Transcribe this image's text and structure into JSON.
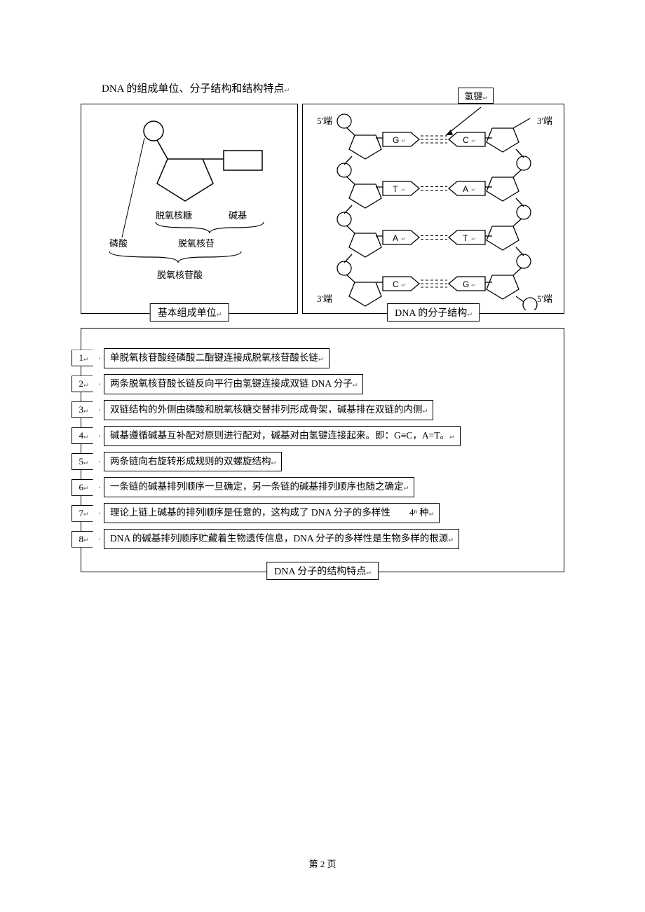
{
  "title": "DNA 的组成单位、分子结构和结构特点",
  "left_panel": {
    "label": "基本组成单位",
    "phosphate_label": "磷酸",
    "sugar_label": "脱氧核糖",
    "base_label": "碱基",
    "nucleoside_label": "脱氧核苷",
    "nucleotide_label": "脱氧核苷酸"
  },
  "right_panel": {
    "label": "DNA 的分子结构",
    "hbond_label": "氢键",
    "end5": "5'端",
    "end3": "3'端",
    "pairs": [
      {
        "left": "G",
        "right": "C",
        "bonds": 3
      },
      {
        "left": "T",
        "right": "A",
        "bonds": 2
      },
      {
        "left": "A",
        "right": "T",
        "bonds": 2
      },
      {
        "left": "C",
        "right": "G",
        "bonds": 3
      }
    ]
  },
  "features_panel": {
    "label": "DNA 分子的结构特点",
    "items": [
      {
        "n": "1",
        "text": "单脱氧核苷酸经磷酸二酯键连接成脱氧核苷酸长链"
      },
      {
        "n": "2",
        "text": "两条脱氧核苷酸长链反向平行由氢键连接成双链 DNA 分子"
      },
      {
        "n": "3",
        "text": "双链结构的外侧由磷酸和脱氧核糖交替排列形成骨架，碱基排在双链的内侧"
      },
      {
        "n": "4",
        "text": "碱基遵循碱基互补配对原则进行配对，碱基对由氢键连接起来。即：G≡C，A=T。"
      },
      {
        "n": "5",
        "text": "两条链向右旋转形成规则的双螺旋结构"
      },
      {
        "n": "6",
        "text": "一条链的碱基排列顺序一旦确定，另一条链的碱基排列顺序也随之确定"
      },
      {
        "n": "7",
        "text": "理论上链上碱基的排列顺序是任意的，这构成了 DNA 分子的多样性　　4ⁿ 种"
      },
      {
        "n": "8",
        "text": "DNA 的碱基排列顺序贮藏着生物遗传信息，DNA 分子的多样性是生物多样的根源"
      }
    ]
  },
  "page_number": "第 2 页",
  "colors": {
    "stroke": "#000000",
    "bg": "#ffffff"
  }
}
